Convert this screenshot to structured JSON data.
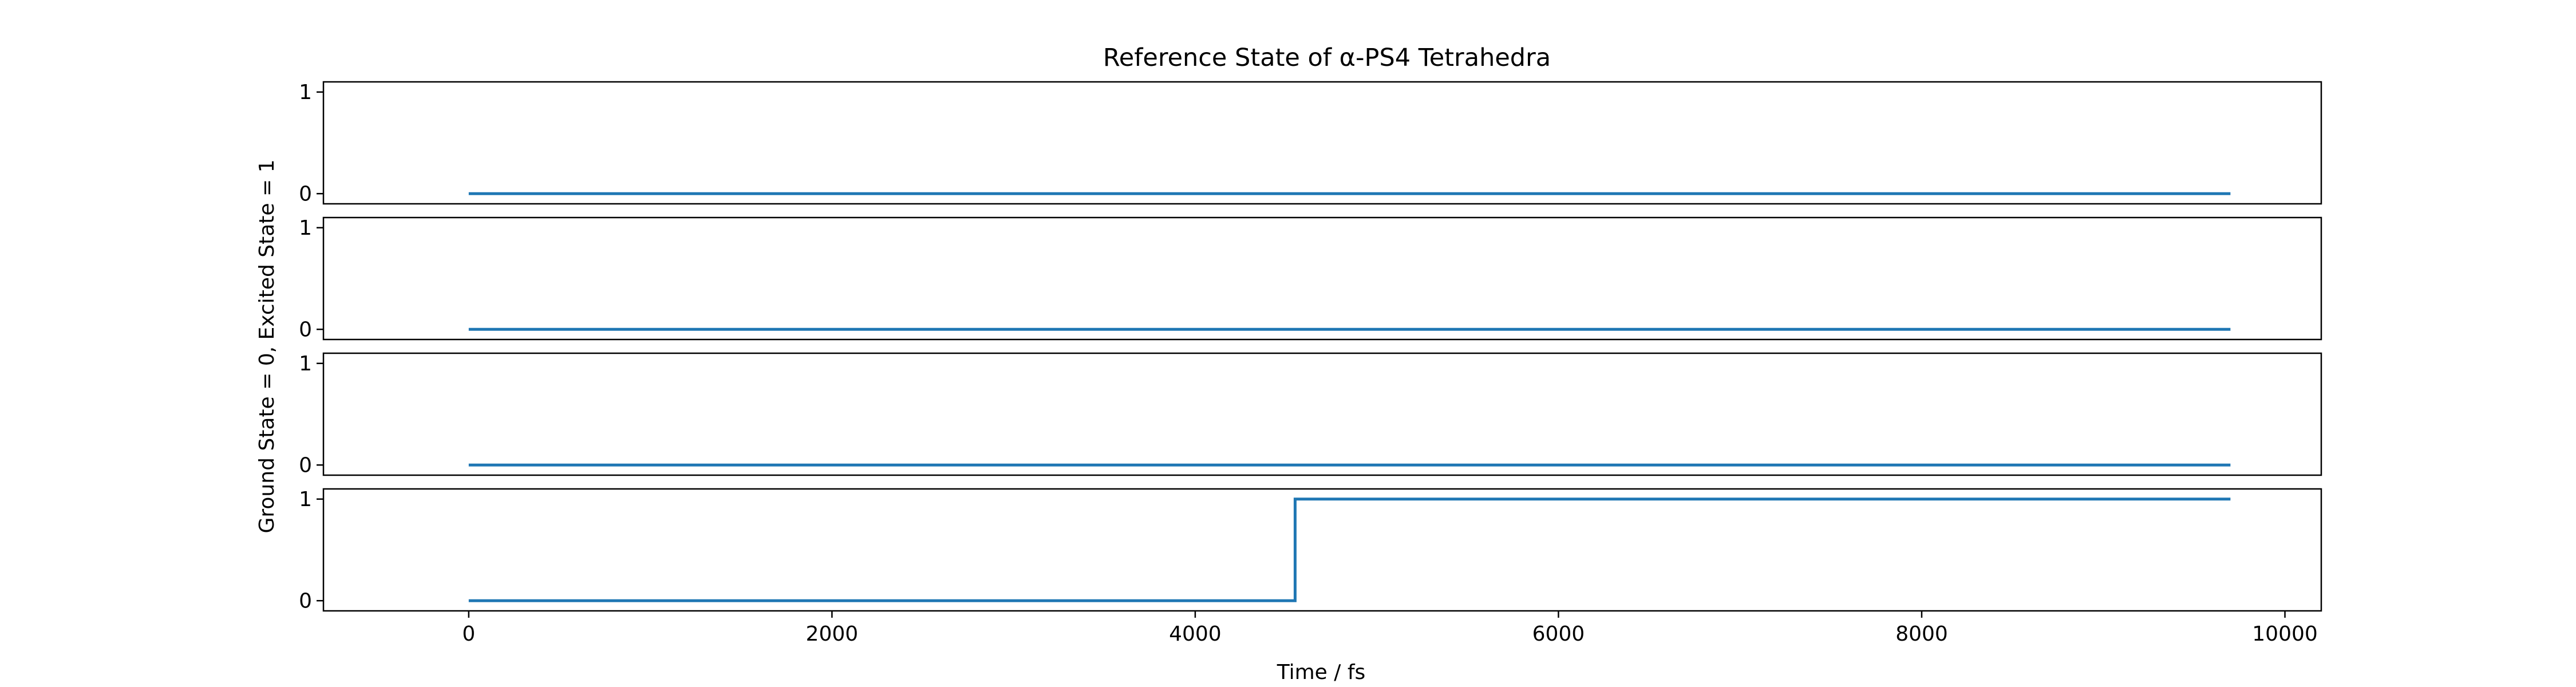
{
  "chart_data": {
    "type": "line",
    "title": "Reference State of α-PS4 Tetrahedra",
    "xlabel": "Time / fs",
    "ylabel": "Ground State = 0, Excited State = 1",
    "xlim": [
      -800,
      10200
    ],
    "ylim": [
      -0.1,
      1.1
    ],
    "xticks": [
      0,
      2000,
      4000,
      6000,
      8000,
      10000
    ],
    "xtick_labels": [
      "0",
      "2000",
      "4000",
      "6000",
      "8000",
      "10000"
    ],
    "yticks": [
      0,
      1
    ],
    "ytick_labels": [
      "0",
      "1"
    ],
    "line_color": "#1f77b4",
    "grid": false,
    "panels": [
      {
        "x": [
          0,
          9700
        ],
        "y": [
          0,
          0
        ]
      },
      {
        "x": [
          0,
          9700
        ],
        "y": [
          0,
          0
        ]
      },
      {
        "x": [
          0,
          9700
        ],
        "y": [
          0,
          0
        ]
      },
      {
        "x": [
          0,
          4550,
          4550,
          9700
        ],
        "y": [
          0,
          0,
          1,
          1
        ]
      }
    ]
  }
}
